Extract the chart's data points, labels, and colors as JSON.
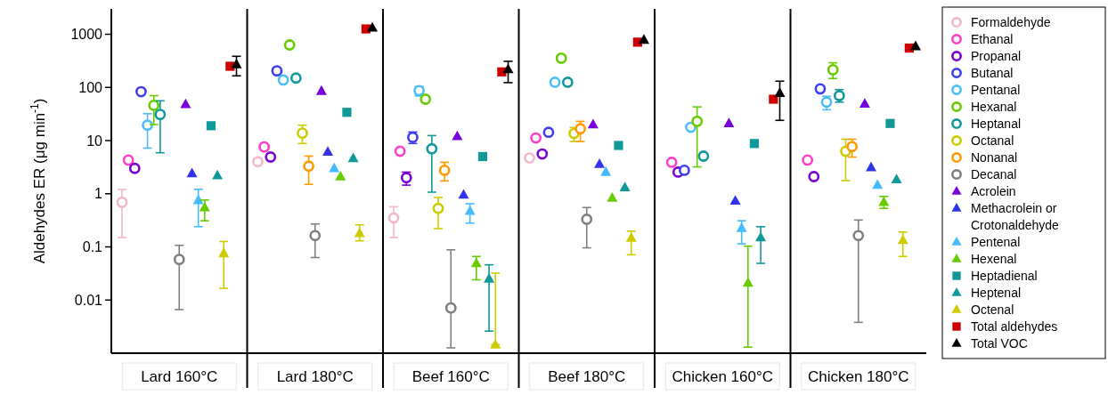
{
  "chart_data": {
    "type": "scatter",
    "ylabel": "Aldehydes ER (μg min$^{-1}$)",
    "log": "y",
    "ylim": [
      0.001,
      3000
    ],
    "yticks": [
      0.01,
      0.1,
      1,
      10,
      100,
      1000
    ],
    "grid": false,
    "legend": "right",
    "categories": [
      "Lard 160°C",
      "Lard 180°C",
      "Beef 160°C",
      "Beef 180°C",
      "Chicken 160°C",
      "Chicken 180°C"
    ],
    "series": [
      {
        "name": "Formaldehyde",
        "color": "#f4b6cf",
        "marker": "circle",
        "values": [
          0.69,
          4.0,
          0.35,
          4.7,
          null,
          null
        ],
        "errors": [
          [
            0.15,
            1.2
          ],
          null,
          [
            0.15,
            0.57
          ],
          null,
          null,
          null
        ]
      },
      {
        "name": "Ethanal",
        "color": "#ff3ec8",
        "marker": "circle",
        "values": [
          4.3,
          7.6,
          6.3,
          11.2,
          3.9,
          4.3
        ]
      },
      {
        "name": "Propanal",
        "color": "#7a00d6",
        "marker": "circle",
        "values": [
          3.0,
          4.9,
          2.0,
          5.6,
          2.55,
          2.1
        ],
        "errors": [
          null,
          null,
          [
            1.45,
            2.55
          ],
          null,
          null,
          null
        ]
      },
      {
        "name": "Butanal",
        "color": "#3f3ff0",
        "marker": "circle",
        "values": [
          83,
          205,
          11.5,
          14.3,
          2.76,
          94
        ],
        "errors": [
          null,
          null,
          [
            8.8,
            14.5
          ],
          null,
          null,
          null
        ]
      },
      {
        "name": "Pentanal",
        "color": "#4dbef5",
        "marker": "circle",
        "values": [
          19.5,
          138,
          87,
          125,
          17.8,
          53
        ],
        "errors": [
          [
            7.2,
            32
          ],
          null,
          [
            69,
            104
          ],
          null,
          null,
          [
            38,
            68
          ]
        ]
      },
      {
        "name": "Hexanal",
        "color": "#66cc00",
        "marker": "circle",
        "values": [
          46,
          630,
          60,
          355,
          23,
          215
        ],
        "errors": [
          [
            20,
            70
          ],
          null,
          null,
          null,
          [
            3.2,
            43
          ],
          [
            147,
            290
          ]
        ]
      },
      {
        "name": "Heptanal",
        "color": "#119999",
        "marker": "circle",
        "values": [
          31,
          150,
          7.0,
          125,
          5.1,
          70
        ],
        "errors": [
          [
            5.9,
            56
          ],
          null,
          [
            1.07,
            12.4
          ],
          null,
          null,
          [
            53,
            91
          ]
        ]
      },
      {
        "name": "Octanal",
        "color": "#cccc00",
        "marker": "circle",
        "values": [
          null,
          13.8,
          0.53,
          13.6,
          null,
          6.3
        ],
        "errors": [
          null,
          [
            8.8,
            19.5
          ],
          [
            0.22,
            0.85
          ],
          [
            9.6,
            17.6
          ],
          null,
          [
            1.76,
            10.6
          ]
        ]
      },
      {
        "name": "Nonanal",
        "color": "#ff9900",
        "marker": "circle",
        "values": [
          null,
          3.3,
          2.76,
          16.7,
          null,
          7.7
        ],
        "errors": [
          null,
          [
            1.5,
            5.1
          ],
          [
            1.74,
            3.9
          ],
          [
            9.6,
            23
          ],
          null,
          [
            4.9,
            10.6
          ]
        ]
      },
      {
        "name": "Decanal",
        "color": "#808080",
        "marker": "circle",
        "values": [
          0.058,
          0.163,
          0.0071,
          0.33,
          null,
          0.163
        ],
        "errors": [
          [
            0.0066,
            0.107
          ],
          [
            0.063,
            0.27
          ],
          [
            0.00126,
            0.088
          ],
          [
            0.096,
            0.55
          ],
          null,
          [
            0.0038,
            0.32
          ]
        ]
      },
      {
        "name": "Acrolein",
        "color": "#7700dd",
        "marker": "triangle",
        "values": [
          48,
          85,
          12,
          20,
          21,
          49
        ]
      },
      {
        "name": "Methacrolein or Crotonaldehyde",
        "color": "#3333ee",
        "marker": "triangle",
        "values": [
          2.4,
          6.1,
          0.95,
          3.6,
          0.73,
          3.1
        ]
      },
      {
        "name": "Pentenal",
        "color": "#44bbff",
        "marker": "triangle",
        "values": [
          0.75,
          3.0,
          0.47,
          2.55,
          0.225,
          1.45
        ],
        "errors": [
          [
            0.24,
            1.21
          ],
          null,
          [
            0.28,
            0.65
          ],
          null,
          [
            0.114,
            0.31
          ],
          null
        ]
      },
      {
        "name": "Hexenal",
        "color": "#66cc00",
        "marker": "triangle",
        "values": [
          0.55,
          2.1,
          0.049,
          0.83,
          0.021,
          0.69
        ],
        "errors": [
          [
            0.31,
            0.76
          ],
          null,
          [
            0.024,
            0.066
          ],
          null,
          [
            0.0013,
            0.103
          ],
          [
            0.53,
            0.89
          ]
        ]
      },
      {
        "name": "Heptadienal",
        "color": "#119999",
        "marker": "square",
        "values": [
          19,
          34,
          5.0,
          8.1,
          8.8,
          21
        ]
      },
      {
        "name": "Heptenal",
        "color": "#119999",
        "marker": "triangle",
        "values": [
          2.2,
          4.6,
          0.025,
          1.31,
          0.15,
          1.85
        ],
        "errors": [
          null,
          null,
          [
            0.0026,
            0.046
          ],
          null,
          [
            0.049,
            0.24
          ],
          null
        ]
      },
      {
        "name": "Octenal",
        "color": "#cccc00",
        "marker": "triangle",
        "values": [
          0.075,
          0.18,
          0.00144,
          0.147,
          null,
          0.133
        ],
        "errors": [
          [
            0.0166,
            0.126
          ],
          [
            0.13,
            0.26
          ],
          [
            0.00144,
            0.032
          ],
          [
            0.071,
            0.198
          ],
          null,
          [
            0.066,
            0.19
          ]
        ]
      },
      {
        "name": "Total aldehydes",
        "color": "#cc0000",
        "marker": "square",
        "values": [
          250,
          1260,
          196,
          710,
          60,
          550
        ]
      },
      {
        "name": "Total VOC",
        "color": "#000000",
        "marker": "triangle",
        "values": [
          270,
          1320,
          218,
          780,
          78,
          590
        ],
        "errors": [
          [
            165,
            385
          ],
          null,
          [
            123,
            310
          ],
          null,
          [
            24,
            131
          ],
          null
        ]
      }
    ]
  }
}
